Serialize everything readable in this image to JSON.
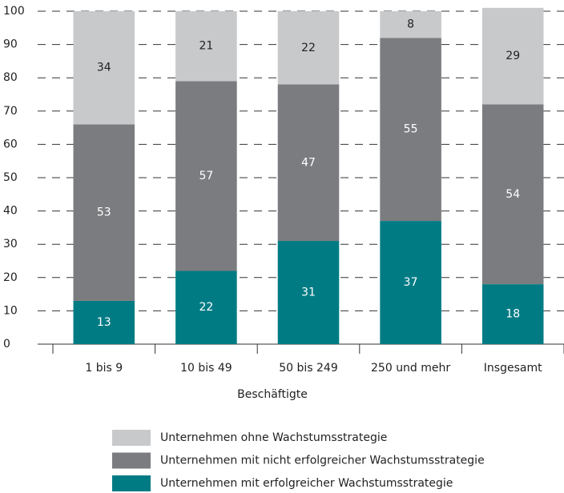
{
  "chart_data": {
    "type": "stacked_bar",
    "x_label": "Beschäftigte",
    "categories": [
      "1 bis 9",
      "10 bis 49",
      "50 bis 249",
      "250 und mehr",
      "Insgesamt"
    ],
    "series": [
      {
        "name": "Unternehmen mit erfolgreicher Wachstumsstrategie",
        "color": "#007b84",
        "values": [
          13,
          22,
          31,
          37,
          18
        ]
      },
      {
        "name": "Unternehmen mit nicht erfolgreicher Wachstumsstrategie",
        "color": "#7b7c7f",
        "values": [
          53,
          57,
          47,
          55,
          54
        ]
      },
      {
        "name": "Unternehmen ohne Wachstumsstrategie",
        "color": "#c8c9ca",
        "values": [
          34,
          21,
          22,
          8,
          29
        ]
      }
    ],
    "ylim": [
      0,
      100
    ],
    "yticks": [
      0,
      10,
      20,
      30,
      40,
      50,
      60,
      70,
      80,
      90,
      100
    ],
    "grid": true
  }
}
